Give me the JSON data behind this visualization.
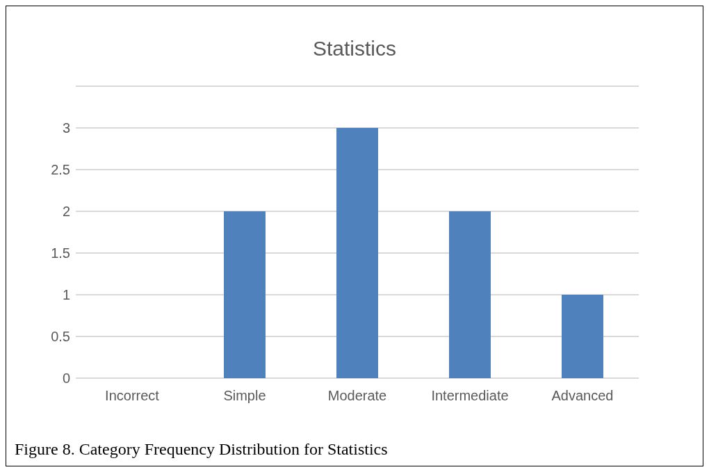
{
  "chart_data": {
    "type": "bar",
    "title": "Statistics",
    "categories": [
      "Incorrect",
      "Simple",
      "Moderate",
      "Intermediate",
      "Advanced"
    ],
    "values": [
      0,
      2,
      3,
      2,
      1
    ],
    "color": "#4f81bd",
    "ylim": [
      0,
      3.5
    ],
    "yticks": [
      0,
      0.5,
      1,
      1.5,
      2,
      2.5,
      3,
      {
        "value": 3.5,
        "label": null
      }
    ],
    "grid": "y",
    "annotations": [
      "Figure 8. Category Frequency Distribution for Statistics"
    ]
  }
}
